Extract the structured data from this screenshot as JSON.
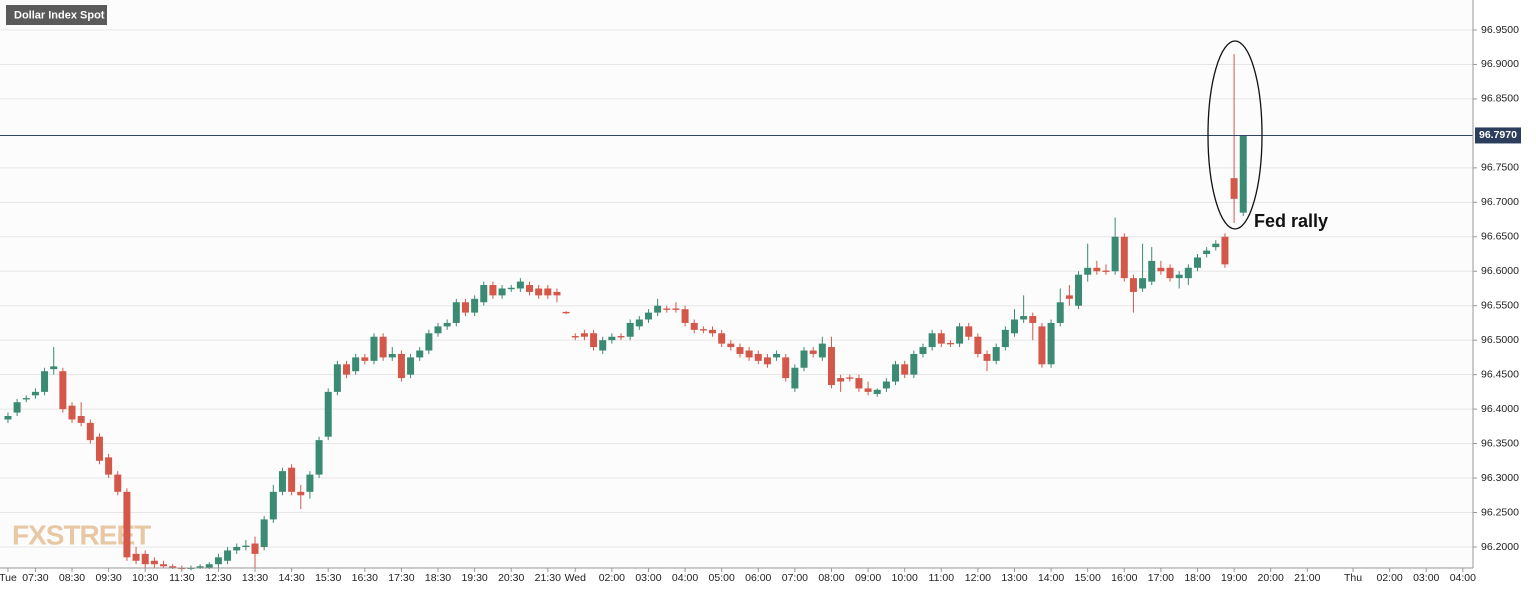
{
  "chart_data": {
    "type": "candlestick",
    "title": "Dollar Index Spot",
    "annotation": "Fed rally",
    "watermark": "FXSTREET",
    "up_color": "#3b8a73",
    "down_color": "#d3584a",
    "last_price": {
      "value": 96.797,
      "label": "96.7970"
    },
    "xlim": [
      -0.87,
      160.11
    ],
    "ylim": [
      96.1695,
      96.9935
    ],
    "grid": true,
    "xticks": [
      {
        "value": 0,
        "label": "Tue"
      },
      {
        "value": 3,
        "label": "07:30"
      },
      {
        "value": 7,
        "label": "08:30"
      },
      {
        "value": 11,
        "label": "09:30"
      },
      {
        "value": 15,
        "label": "10:30"
      },
      {
        "value": 19,
        "label": "11:30"
      },
      {
        "value": 23,
        "label": "12:30"
      },
      {
        "value": 27,
        "label": "13:30"
      },
      {
        "value": 31,
        "label": "14:30"
      },
      {
        "value": 35,
        "label": "15:30"
      },
      {
        "value": 39,
        "label": "16:30"
      },
      {
        "value": 43,
        "label": "17:30"
      },
      {
        "value": 47,
        "label": "18:30"
      },
      {
        "value": 51,
        "label": "19:30"
      },
      {
        "value": 55,
        "label": "20:30"
      },
      {
        "value": 59,
        "label": "21:30"
      },
      {
        "value": 62,
        "label": "Wed"
      },
      {
        "value": 66,
        "label": "02:00"
      },
      {
        "value": 70,
        "label": "03:00"
      },
      {
        "value": 74,
        "label": "04:00"
      },
      {
        "value": 78,
        "label": "05:00"
      },
      {
        "value": 82,
        "label": "06:00"
      },
      {
        "value": 86,
        "label": "07:00"
      },
      {
        "value": 90,
        "label": "08:00"
      },
      {
        "value": 94,
        "label": "09:00"
      },
      {
        "value": 98,
        "label": "10:00"
      },
      {
        "value": 102,
        "label": "11:00"
      },
      {
        "value": 106,
        "label": "12:00"
      },
      {
        "value": 110,
        "label": "13:00"
      },
      {
        "value": 114,
        "label": "14:00"
      },
      {
        "value": 118,
        "label": "15:00"
      },
      {
        "value": 122,
        "label": "16:00"
      },
      {
        "value": 126,
        "label": "17:00"
      },
      {
        "value": 130,
        "label": "18:00"
      },
      {
        "value": 134,
        "label": "19:00"
      },
      {
        "value": 138,
        "label": "20:00"
      },
      {
        "value": 142,
        "label": "21:00"
      },
      {
        "value": 147,
        "label": "Thu"
      },
      {
        "value": 151,
        "label": "02:00"
      },
      {
        "value": 155,
        "label": "03:00"
      },
      {
        "value": 159,
        "label": "04:00"
      }
    ],
    "yticks": [
      {
        "value": 96.2,
        "label": "96.2000"
      },
      {
        "value": 96.25,
        "label": "96.2500"
      },
      {
        "value": 96.3,
        "label": "96.3000"
      },
      {
        "value": 96.35,
        "label": "96.3500"
      },
      {
        "value": 96.4,
        "label": "96.4000"
      },
      {
        "value": 96.45,
        "label": "96.4500"
      },
      {
        "value": 96.5,
        "label": "96.5000"
      },
      {
        "value": 96.55,
        "label": "96.5500"
      },
      {
        "value": 96.6,
        "label": "96.6000"
      },
      {
        "value": 96.65,
        "label": "96.6500"
      },
      {
        "value": 96.7,
        "label": "96.7000"
      },
      {
        "value": 96.75,
        "label": "96.7500"
      },
      {
        "value": 96.85,
        "label": "96.8500"
      },
      {
        "value": 96.9,
        "label": "96.9000"
      },
      {
        "value": 96.95,
        "label": "96.9500"
      }
    ],
    "candles": [
      {
        "x": 0,
        "o": 96.385,
        "h": 96.395,
        "l": 96.38,
        "c": 96.39
      },
      {
        "x": 1,
        "o": 96.395,
        "h": 96.415,
        "l": 96.39,
        "c": 96.41
      },
      {
        "x": 2,
        "o": 96.414,
        "h": 96.42,
        "l": 96.41,
        "c": 96.416
      },
      {
        "x": 3,
        "o": 96.42,
        "h": 96.43,
        "l": 96.415,
        "c": 96.425
      },
      {
        "x": 4,
        "o": 96.425,
        "h": 96.46,
        "l": 96.42,
        "c": 96.455
      },
      {
        "x": 5,
        "o": 96.458,
        "h": 96.49,
        "l": 96.45,
        "c": 96.462
      },
      {
        "x": 6,
        "o": 96.455,
        "h": 96.46,
        "l": 96.395,
        "c": 96.4
      },
      {
        "x": 7,
        "o": 96.405,
        "h": 96.41,
        "l": 96.38,
        "c": 96.385
      },
      {
        "x": 8,
        "o": 96.39,
        "h": 96.41,
        "l": 96.375,
        "c": 96.38
      },
      {
        "x": 9,
        "o": 96.38,
        "h": 96.385,
        "l": 96.35,
        "c": 96.355
      },
      {
        "x": 10,
        "o": 96.36,
        "h": 96.365,
        "l": 96.32,
        "c": 96.325
      },
      {
        "x": 11,
        "o": 96.33,
        "h": 96.335,
        "l": 96.3,
        "c": 96.305
      },
      {
        "x": 12,
        "o": 96.305,
        "h": 96.31,
        "l": 96.275,
        "c": 96.28
      },
      {
        "x": 13,
        "o": 96.28,
        "h": 96.285,
        "l": 96.18,
        "c": 96.185
      },
      {
        "x": 14,
        "o": 96.19,
        "h": 96.2,
        "l": 96.175,
        "c": 96.18
      },
      {
        "x": 15,
        "o": 96.19,
        "h": 96.195,
        "l": 96.17,
        "c": 96.175
      },
      {
        "x": 16,
        "o": 96.18,
        "h": 96.185,
        "l": 96.17,
        "c": 96.175
      },
      {
        "x": 17,
        "o": 96.175,
        "h": 96.18,
        "l": 96.17,
        "c": 96.172
      },
      {
        "x": 18,
        "o": 96.172,
        "h": 96.175,
        "l": 96.168,
        "c": 96.17
      },
      {
        "x": 19,
        "o": 96.17,
        "h": 96.173,
        "l": 96.166,
        "c": 96.168
      },
      {
        "x": 20,
        "o": 96.168,
        "h": 96.173,
        "l": 96.166,
        "c": 96.17
      },
      {
        "x": 21,
        "o": 96.17,
        "h": 96.175,
        "l": 96.168,
        "c": 96.172
      },
      {
        "x": 22,
        "o": 96.17,
        "h": 96.178,
        "l": 96.168,
        "c": 96.175
      },
      {
        "x": 23,
        "o": 96.175,
        "h": 96.19,
        "l": 96.17,
        "c": 96.185
      },
      {
        "x": 24,
        "o": 96.18,
        "h": 96.2,
        "l": 96.175,
        "c": 96.195
      },
      {
        "x": 25,
        "o": 96.195,
        "h": 96.205,
        "l": 96.19,
        "c": 96.2
      },
      {
        "x": 26,
        "o": 96.2,
        "h": 96.21,
        "l": 96.195,
        "c": 96.202
      },
      {
        "x": 27,
        "o": 96.205,
        "h": 96.215,
        "l": 96.17,
        "c": 96.19
      },
      {
        "x": 28,
        "o": 96.2,
        "h": 96.245,
        "l": 96.195,
        "c": 96.24
      },
      {
        "x": 29,
        "o": 96.24,
        "h": 96.29,
        "l": 96.235,
        "c": 96.28
      },
      {
        "x": 30,
        "o": 96.28,
        "h": 96.315,
        "l": 96.275,
        "c": 96.31
      },
      {
        "x": 31,
        "o": 96.315,
        "h": 96.32,
        "l": 96.275,
        "c": 96.28
      },
      {
        "x": 32,
        "o": 96.28,
        "h": 96.29,
        "l": 96.255,
        "c": 96.275
      },
      {
        "x": 33,
        "o": 96.28,
        "h": 96.31,
        "l": 96.27,
        "c": 96.305
      },
      {
        "x": 34,
        "o": 96.305,
        "h": 96.36,
        "l": 96.3,
        "c": 96.355
      },
      {
        "x": 35,
        "o": 96.36,
        "h": 96.43,
        "l": 96.355,
        "c": 96.425
      },
      {
        "x": 36,
        "o": 96.425,
        "h": 96.47,
        "l": 96.42,
        "c": 96.465
      },
      {
        "x": 37,
        "o": 96.465,
        "h": 96.47,
        "l": 96.445,
        "c": 96.45
      },
      {
        "x": 38,
        "o": 96.455,
        "h": 96.48,
        "l": 96.45,
        "c": 96.475
      },
      {
        "x": 39,
        "o": 96.475,
        "h": 96.48,
        "l": 96.465,
        "c": 96.47
      },
      {
        "x": 40,
        "o": 96.47,
        "h": 96.51,
        "l": 96.465,
        "c": 96.505
      },
      {
        "x": 41,
        "o": 96.505,
        "h": 96.51,
        "l": 96.47,
        "c": 96.475
      },
      {
        "x": 42,
        "o": 96.475,
        "h": 96.49,
        "l": 96.47,
        "c": 96.48
      },
      {
        "x": 43,
        "o": 96.48,
        "h": 96.485,
        "l": 96.44,
        "c": 96.445
      },
      {
        "x": 44,
        "o": 96.45,
        "h": 96.48,
        "l": 96.445,
        "c": 96.475
      },
      {
        "x": 45,
        "o": 96.475,
        "h": 96.49,
        "l": 96.47,
        "c": 96.485
      },
      {
        "x": 46,
        "o": 96.485,
        "h": 96.515,
        "l": 96.48,
        "c": 96.51
      },
      {
        "x": 47,
        "o": 96.51,
        "h": 96.525,
        "l": 96.505,
        "c": 96.52
      },
      {
        "x": 48,
        "o": 96.52,
        "h": 96.53,
        "l": 96.515,
        "c": 96.525
      },
      {
        "x": 49,
        "o": 96.525,
        "h": 96.56,
        "l": 96.52,
        "c": 96.555
      },
      {
        "x": 50,
        "o": 96.555,
        "h": 96.56,
        "l": 96.535,
        "c": 96.54
      },
      {
        "x": 51,
        "o": 96.54,
        "h": 96.565,
        "l": 96.535,
        "c": 96.56
      },
      {
        "x": 52,
        "o": 96.555,
        "h": 96.585,
        "l": 96.55,
        "c": 96.58
      },
      {
        "x": 53,
        "o": 96.58,
        "h": 96.585,
        "l": 96.56,
        "c": 96.565
      },
      {
        "x": 54,
        "o": 96.565,
        "h": 96.58,
        "l": 96.56,
        "c": 96.575
      },
      {
        "x": 55,
        "o": 96.574,
        "h": 96.58,
        "l": 96.57,
        "c": 96.576
      },
      {
        "x": 56,
        "o": 96.575,
        "h": 96.59,
        "l": 96.57,
        "c": 96.585
      },
      {
        "x": 57,
        "o": 96.58,
        "h": 96.585,
        "l": 96.565,
        "c": 96.57
      },
      {
        "x": 58,
        "o": 96.575,
        "h": 96.58,
        "l": 96.56,
        "c": 96.565
      },
      {
        "x": 59,
        "o": 96.575,
        "h": 96.58,
        "l": 96.56,
        "c": 96.565
      },
      {
        "x": 60,
        "o": 96.57,
        "h": 96.575,
        "l": 96.555,
        "c": 96.565
      },
      {
        "x": 61,
        "o": 96.541,
        "h": 96.542,
        "l": 96.538,
        "c": 96.539
      },
      {
        "x": 62,
        "o": 96.506,
        "h": 96.51,
        "l": 96.5,
        "c": 96.504
      },
      {
        "x": 63,
        "o": 96.51,
        "h": 96.515,
        "l": 96.5,
        "c": 96.505
      },
      {
        "x": 64,
        "o": 96.51,
        "h": 96.515,
        "l": 96.485,
        "c": 96.49
      },
      {
        "x": 65,
        "o": 96.485,
        "h": 96.505,
        "l": 96.48,
        "c": 96.5
      },
      {
        "x": 66,
        "o": 96.5,
        "h": 96.51,
        "l": 96.495,
        "c": 96.505
      },
      {
        "x": 67,
        "o": 96.506,
        "h": 96.51,
        "l": 96.5,
        "c": 96.504
      },
      {
        "x": 68,
        "o": 96.505,
        "h": 96.53,
        "l": 96.5,
        "c": 96.525
      },
      {
        "x": 69,
        "o": 96.52,
        "h": 96.535,
        "l": 96.515,
        "c": 96.53
      },
      {
        "x": 70,
        "o": 96.53,
        "h": 96.545,
        "l": 96.525,
        "c": 96.54
      },
      {
        "x": 71,
        "o": 96.54,
        "h": 96.56,
        "l": 96.535,
        "c": 96.55
      },
      {
        "x": 72,
        "o": 96.546,
        "h": 96.55,
        "l": 96.54,
        "c": 96.544
      },
      {
        "x": 73,
        "o": 96.546,
        "h": 96.555,
        "l": 96.54,
        "c": 96.544
      },
      {
        "x": 74,
        "o": 96.545,
        "h": 96.55,
        "l": 96.52,
        "c": 96.525
      },
      {
        "x": 75,
        "o": 96.525,
        "h": 96.53,
        "l": 96.51,
        "c": 96.515
      },
      {
        "x": 76,
        "o": 96.516,
        "h": 96.52,
        "l": 96.51,
        "c": 96.514
      },
      {
        "x": 77,
        "o": 96.515,
        "h": 96.52,
        "l": 96.505,
        "c": 96.51
      },
      {
        "x": 78,
        "o": 96.51,
        "h": 96.515,
        "l": 96.49,
        "c": 96.495
      },
      {
        "x": 79,
        "o": 96.495,
        "h": 96.5,
        "l": 96.485,
        "c": 96.49
      },
      {
        "x": 80,
        "o": 96.49,
        "h": 96.495,
        "l": 96.475,
        "c": 96.48
      },
      {
        "x": 81,
        "o": 96.485,
        "h": 96.49,
        "l": 96.47,
        "c": 96.475
      },
      {
        "x": 82,
        "o": 96.48,
        "h": 96.485,
        "l": 96.465,
        "c": 96.47
      },
      {
        "x": 83,
        "o": 96.475,
        "h": 96.48,
        "l": 96.46,
        "c": 96.465
      },
      {
        "x": 84,
        "o": 96.475,
        "h": 96.485,
        "l": 96.47,
        "c": 96.48
      },
      {
        "x": 85,
        "o": 96.475,
        "h": 96.48,
        "l": 96.44,
        "c": 96.445
      },
      {
        "x": 86,
        "o": 96.43,
        "h": 96.465,
        "l": 96.425,
        "c": 96.46
      },
      {
        "x": 87,
        "o": 96.46,
        "h": 96.49,
        "l": 96.455,
        "c": 96.485
      },
      {
        "x": 88,
        "o": 96.485,
        "h": 96.49,
        "l": 96.475,
        "c": 96.48
      },
      {
        "x": 89,
        "o": 96.475,
        "h": 96.505,
        "l": 96.47,
        "c": 96.495
      },
      {
        "x": 90,
        "o": 96.49,
        "h": 96.505,
        "l": 96.43,
        "c": 96.435
      },
      {
        "x": 91,
        "o": 96.445,
        "h": 96.45,
        "l": 96.425,
        "c": 96.44
      },
      {
        "x": 92,
        "o": 96.446,
        "h": 96.45,
        "l": 96.44,
        "c": 96.444
      },
      {
        "x": 93,
        "o": 96.445,
        "h": 96.45,
        "l": 96.425,
        "c": 96.43
      },
      {
        "x": 94,
        "o": 96.43,
        "h": 96.44,
        "l": 96.42,
        "c": 96.425
      },
      {
        "x": 95,
        "o": 96.422,
        "h": 96.43,
        "l": 96.418,
        "c": 96.428
      },
      {
        "x": 96,
        "o": 96.43,
        "h": 96.445,
        "l": 96.425,
        "c": 96.44
      },
      {
        "x": 97,
        "o": 96.44,
        "h": 96.47,
        "l": 96.435,
        "c": 96.465
      },
      {
        "x": 98,
        "o": 96.465,
        "h": 96.47,
        "l": 96.445,
        "c": 96.45
      },
      {
        "x": 99,
        "o": 96.45,
        "h": 96.485,
        "l": 96.445,
        "c": 96.48
      },
      {
        "x": 100,
        "o": 96.48,
        "h": 96.495,
        "l": 96.475,
        "c": 96.49
      },
      {
        "x": 101,
        "o": 96.49,
        "h": 96.515,
        "l": 96.485,
        "c": 96.51
      },
      {
        "x": 102,
        "o": 96.51,
        "h": 96.515,
        "l": 96.49,
        "c": 96.495
      },
      {
        "x": 103,
        "o": 96.496,
        "h": 96.5,
        "l": 96.49,
        "c": 96.494
      },
      {
        "x": 104,
        "o": 96.495,
        "h": 96.525,
        "l": 96.49,
        "c": 96.52
      },
      {
        "x": 105,
        "o": 96.52,
        "h": 96.525,
        "l": 96.5,
        "c": 96.505
      },
      {
        "x": 106,
        "o": 96.505,
        "h": 96.51,
        "l": 96.475,
        "c": 96.48
      },
      {
        "x": 107,
        "o": 96.48,
        "h": 96.485,
        "l": 96.455,
        "c": 96.47
      },
      {
        "x": 108,
        "o": 96.47,
        "h": 96.495,
        "l": 96.465,
        "c": 96.49
      },
      {
        "x": 109,
        "o": 96.49,
        "h": 96.52,
        "l": 96.485,
        "c": 96.515
      },
      {
        "x": 110,
        "o": 96.51,
        "h": 96.545,
        "l": 96.505,
        "c": 96.53
      },
      {
        "x": 111,
        "o": 96.53,
        "h": 96.565,
        "l": 96.525,
        "c": 96.535
      },
      {
        "x": 112,
        "o": 96.535,
        "h": 96.54,
        "l": 96.5,
        "c": 96.525
      },
      {
        "x": 113,
        "o": 96.52,
        "h": 96.525,
        "l": 96.46,
        "c": 96.465
      },
      {
        "x": 114,
        "o": 96.465,
        "h": 96.53,
        "l": 96.46,
        "c": 96.525
      },
      {
        "x": 115,
        "o": 96.525,
        "h": 96.575,
        "l": 96.52,
        "c": 96.555
      },
      {
        "x": 116,
        "o": 96.565,
        "h": 96.58,
        "l": 96.55,
        "c": 96.56
      },
      {
        "x": 117,
        "o": 96.55,
        "h": 96.6,
        "l": 96.545,
        "c": 96.595
      },
      {
        "x": 118,
        "o": 96.595,
        "h": 96.64,
        "l": 96.585,
        "c": 96.605
      },
      {
        "x": 119,
        "o": 96.605,
        "h": 96.615,
        "l": 96.595,
        "c": 96.6
      },
      {
        "x": 120,
        "o": 96.601,
        "h": 96.61,
        "l": 96.595,
        "c": 96.599
      },
      {
        "x": 121,
        "o": 96.6,
        "h": 96.678,
        "l": 96.595,
        "c": 96.65
      },
      {
        "x": 122,
        "o": 96.65,
        "h": 96.655,
        "l": 96.585,
        "c": 96.59
      },
      {
        "x": 123,
        "o": 96.59,
        "h": 96.595,
        "l": 96.54,
        "c": 96.57
      },
      {
        "x": 124,
        "o": 96.575,
        "h": 96.64,
        "l": 96.57,
        "c": 96.59
      },
      {
        "x": 125,
        "o": 96.585,
        "h": 96.635,
        "l": 96.58,
        "c": 96.615
      },
      {
        "x": 126,
        "o": 96.605,
        "h": 96.615,
        "l": 96.595,
        "c": 96.6
      },
      {
        "x": 127,
        "o": 96.605,
        "h": 96.61,
        "l": 96.585,
        "c": 96.59
      },
      {
        "x": 128,
        "o": 96.59,
        "h": 96.6,
        "l": 96.575,
        "c": 96.595
      },
      {
        "x": 129,
        "o": 96.59,
        "h": 96.61,
        "l": 96.58,
        "c": 96.605
      },
      {
        "x": 130,
        "o": 96.605,
        "h": 96.625,
        "l": 96.6,
        "c": 96.62
      },
      {
        "x": 131,
        "o": 96.625,
        "h": 96.635,
        "l": 96.62,
        "c": 96.63
      },
      {
        "x": 132,
        "o": 96.635,
        "h": 96.645,
        "l": 96.63,
        "c": 96.64
      },
      {
        "x": 133,
        "o": 96.65,
        "h": 96.655,
        "l": 96.605,
        "c": 96.61
      },
      {
        "x": 134,
        "o": 96.735,
        "h": 96.915,
        "l": 96.67,
        "c": 96.705
      },
      {
        "x": 135,
        "o": 96.685,
        "h": 96.797,
        "l": 96.68,
        "c": 96.797
      }
    ]
  }
}
